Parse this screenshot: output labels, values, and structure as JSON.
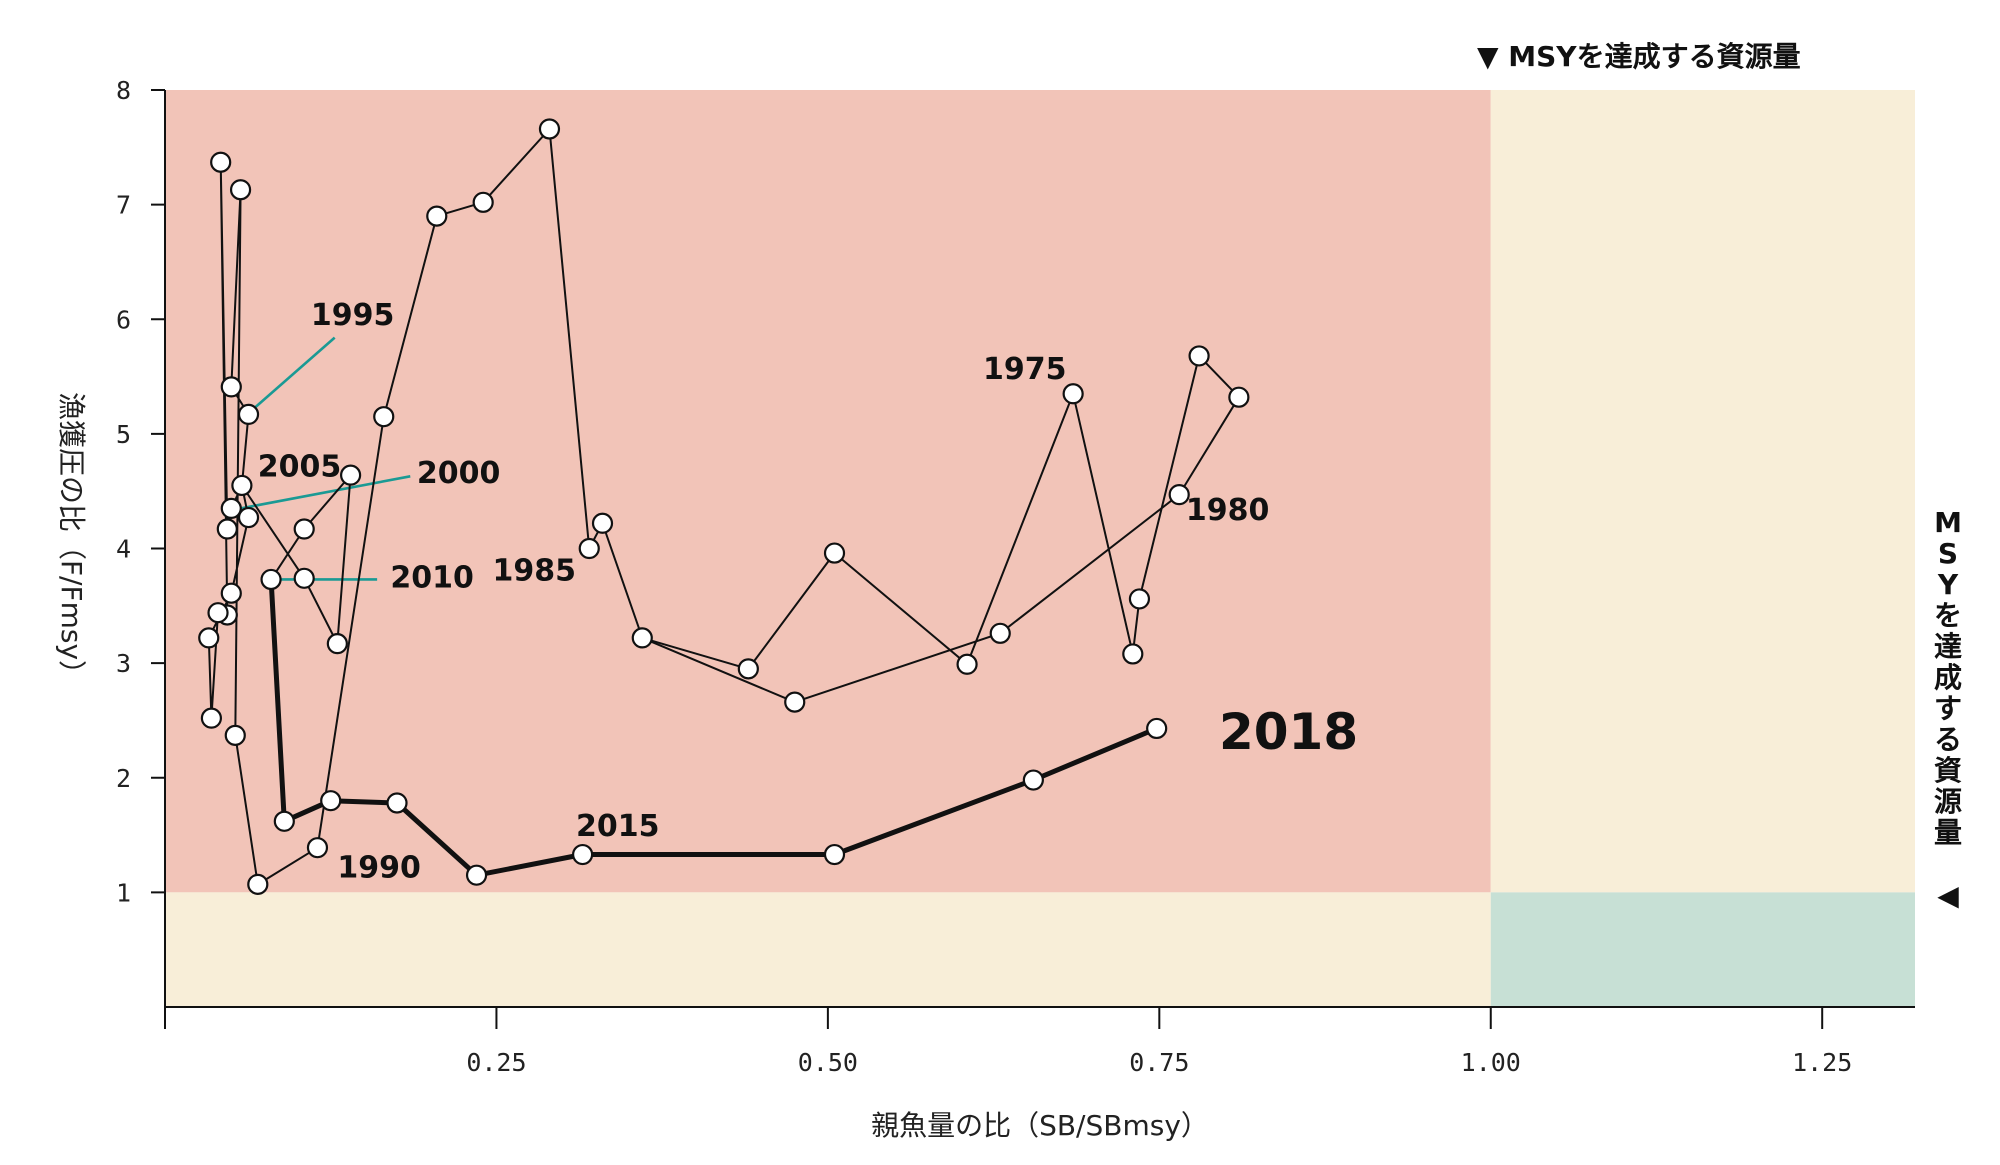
{
  "chart_data": {
    "type": "line",
    "xlabel": "親魚量の比（SB/SBmsy）",
    "ylabel": "漁獲圧の比（F/Fmsy）",
    "xlim": [
      0,
      1.32
    ],
    "ylim": [
      0,
      8
    ],
    "x_ticks": [
      {
        "value": 0.25,
        "label": "0.25"
      },
      {
        "value": 0.5,
        "label": "0.50"
      },
      {
        "value": 0.75,
        "label": "0.75"
      },
      {
        "value": 1.0,
        "label": "1.00"
      },
      {
        "value": 1.25,
        "label": "1.25"
      }
    ],
    "y_ticks": [
      {
        "value": 1,
        "label": "1"
      },
      {
        "value": 2,
        "label": "2"
      },
      {
        "value": 3,
        "label": "3"
      },
      {
        "value": 4,
        "label": "4"
      },
      {
        "value": 5,
        "label": "5"
      },
      {
        "value": 6,
        "label": "6"
      },
      {
        "value": 7,
        "label": "7"
      },
      {
        "value": 8,
        "label": "8"
      }
    ],
    "regions": [
      {
        "x": [
          0,
          1.0
        ],
        "y": [
          1,
          8
        ],
        "color": "#f2c4b8"
      },
      {
        "x": [
          1.0,
          1.32
        ],
        "y": [
          1,
          8
        ],
        "color": "#f8eed8"
      },
      {
        "x": [
          0,
          1.0
        ],
        "y": [
          0,
          1
        ],
        "color": "#f8eed8"
      },
      {
        "x": [
          1.0,
          1.32
        ],
        "y": [
          0,
          1
        ],
        "color": "#c7e0d5"
      }
    ],
    "series": [
      {
        "style": "thin",
        "points": [
          [
            0.81,
            5.32
          ],
          [
            0.78,
            5.68
          ],
          [
            0.735,
            3.56
          ],
          [
            0.73,
            3.08
          ],
          [
            0.685,
            5.35
          ],
          [
            0.605,
            2.99
          ],
          [
            0.505,
            3.96
          ],
          [
            0.44,
            2.95
          ],
          [
            0.36,
            3.22
          ],
          [
            0.33,
            4.22
          ],
          [
            0.32,
            4.0
          ],
          [
            0.29,
            7.66
          ],
          [
            0.24,
            7.02
          ],
          [
            0.205,
            6.9
          ],
          [
            0.165,
            5.15
          ],
          [
            0.115,
            1.39
          ],
          [
            0.07,
            1.07
          ],
          [
            0.053,
            2.37
          ],
          [
            0.057,
            7.13
          ],
          [
            0.05,
            5.41
          ],
          [
            0.063,
            5.17
          ],
          [
            0.058,
            4.55
          ],
          [
            0.05,
            4.35
          ],
          [
            0.047,
            4.17
          ],
          [
            0.042,
            7.37
          ],
          [
            0.047,
            3.42
          ],
          [
            0.04,
            3.44
          ],
          [
            0.035,
            2.52
          ],
          [
            0.033,
            3.22
          ],
          [
            0.05,
            3.61
          ],
          [
            0.063,
            4.27
          ],
          [
            0.058,
            4.55
          ],
          [
            0.105,
            3.74
          ],
          [
            0.13,
            3.17
          ],
          [
            0.14,
            4.64
          ],
          [
            0.105,
            4.17
          ],
          [
            0.08,
            3.73
          ]
        ]
      },
      {
        "style": "thin",
        "points": [
          [
            0.81,
            5.32
          ],
          [
            0.765,
            4.47
          ],
          [
            0.63,
            3.26
          ],
          [
            0.475,
            2.66
          ],
          [
            0.36,
            3.22
          ]
        ]
      },
      {
        "style": "thick",
        "points": [
          [
            0.08,
            3.73
          ],
          [
            0.09,
            1.62
          ],
          [
            0.125,
            1.8
          ],
          [
            0.175,
            1.78
          ],
          [
            0.235,
            1.15
          ],
          [
            0.315,
            1.33
          ],
          [
            0.505,
            1.33
          ],
          [
            0.655,
            1.98
          ],
          [
            0.748,
            2.43
          ]
        ]
      }
    ],
    "annotations": [
      {
        "text": "1975",
        "at": [
          0.68,
          5.48
        ],
        "anchor": "end",
        "size": "normal"
      },
      {
        "text": "1980",
        "at": [
          0.77,
          4.25
        ],
        "anchor": "start",
        "size": "normal"
      },
      {
        "text": "1985",
        "at": [
          0.31,
          3.72
        ],
        "anchor": "end",
        "size": "normal"
      },
      {
        "text": "1990",
        "at": [
          0.13,
          1.13
        ],
        "anchor": "start",
        "size": "normal"
      },
      {
        "text": "1995",
        "at": [
          0.11,
          5.95
        ],
        "anchor": "start",
        "size": "normal",
        "leader": [
          [
            0.128,
            5.84
          ],
          [
            0.06,
            5.15
          ]
        ]
      },
      {
        "text": "2000",
        "at": [
          0.19,
          4.57
        ],
        "anchor": "start",
        "size": "normal",
        "leader": [
          [
            0.185,
            4.63
          ],
          [
            0.048,
            4.33
          ]
        ]
      },
      {
        "text": "2005",
        "at": [
          0.07,
          4.63
        ],
        "anchor": "start",
        "size": "normal"
      },
      {
        "text": "2010",
        "at": [
          0.17,
          3.66
        ],
        "anchor": "start",
        "size": "normal",
        "leader": [
          [
            0.16,
            3.73
          ],
          [
            0.08,
            3.73
          ]
        ]
      },
      {
        "text": "2015",
        "at": [
          0.31,
          1.49
        ],
        "anchor": "start",
        "size": "normal"
      },
      {
        "text": "2018",
        "at": [
          0.795,
          2.25
        ],
        "anchor": "start",
        "size": "big"
      }
    ],
    "msy_marker_top": "▼ MSYを達成する資源量",
    "msy_marker_right": [
      "M",
      "S",
      "Y",
      "を",
      "達",
      "成",
      "す",
      "る",
      "資",
      "源",
      "量"
    ],
    "msy_marker_right_arrow": "◀",
    "leader_color": "#1a9a94"
  }
}
